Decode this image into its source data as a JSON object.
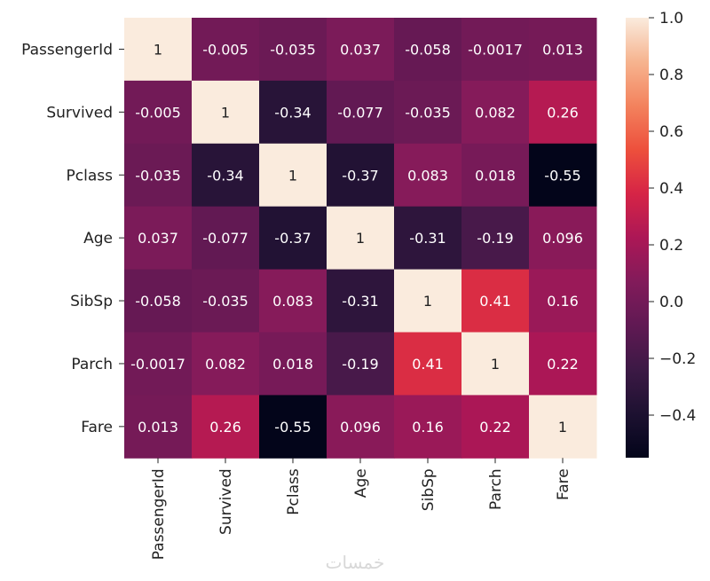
{
  "chart_data": {
    "type": "heatmap",
    "title": "",
    "labels": [
      "PassengerId",
      "Survived",
      "Pclass",
      "Age",
      "SibSp",
      "Parch",
      "Fare"
    ],
    "cell_labels": [
      [
        "1",
        "-0.005",
        "-0.035",
        "0.037",
        "-0.058",
        "-0.0017",
        "0.013"
      ],
      [
        "-0.005",
        "1",
        "-0.34",
        "-0.077",
        "-0.035",
        "0.082",
        "0.26"
      ],
      [
        "-0.035",
        "-0.34",
        "1",
        "-0.37",
        "0.083",
        "0.018",
        "-0.55"
      ],
      [
        "0.037",
        "-0.077",
        "-0.37",
        "1",
        "-0.31",
        "-0.19",
        "0.096"
      ],
      [
        "-0.058",
        "-0.035",
        "0.083",
        "-0.31",
        "1",
        "0.41",
        "0.16"
      ],
      [
        "-0.0017",
        "0.082",
        "0.018",
        "-0.19",
        "0.41",
        "1",
        "0.22"
      ],
      [
        "0.013",
        "0.26",
        "-0.55",
        "0.096",
        "0.16",
        "0.22",
        "1"
      ]
    ],
    "values": [
      [
        1,
        -0.005,
        -0.035,
        0.037,
        -0.058,
        -0.0017,
        0.013
      ],
      [
        -0.005,
        1,
        -0.34,
        -0.077,
        -0.035,
        0.082,
        0.26
      ],
      [
        -0.035,
        -0.34,
        1,
        -0.37,
        0.083,
        0.018,
        -0.55
      ],
      [
        0.037,
        -0.077,
        -0.37,
        1,
        -0.31,
        -0.19,
        0.096
      ],
      [
        -0.058,
        -0.035,
        0.083,
        -0.31,
        1,
        0.41,
        0.16
      ],
      [
        -0.0017,
        0.082,
        0.018,
        -0.19,
        0.41,
        1,
        0.22
      ],
      [
        0.013,
        0.26,
        -0.55,
        0.096,
        0.16,
        0.22,
        1
      ]
    ],
    "colorbar": {
      "range": [
        -0.55,
        1.0
      ],
      "tick_values": [
        1.0,
        0.8,
        0.6,
        0.4,
        0.2,
        0.0,
        -0.2,
        -0.4
      ],
      "tick_labels": [
        "1.0",
        "0.8",
        "0.6",
        "0.4",
        "0.2",
        "0.0",
        "−0.2",
        "−0.4"
      ]
    },
    "colormap": "rocket"
  },
  "watermark": "خمسات"
}
